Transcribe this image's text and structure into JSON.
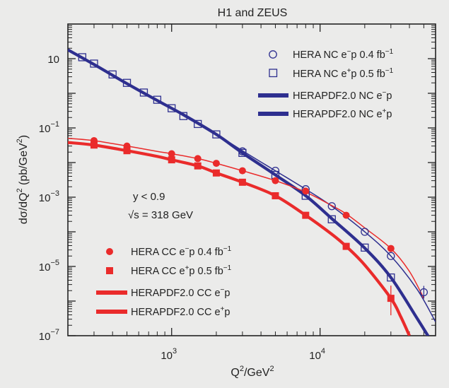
{
  "chart_data": {
    "type": "scatter",
    "title": "H1 and ZEUS",
    "xlabel": "Q²/GeV²",
    "ylabel": "dσ/dQ² (pb/GeV²)",
    "xscale": "log",
    "yscale": "log",
    "xlim": [
      200,
      60000
    ],
    "ylim": [
      1e-07,
      100
    ],
    "x_ticks": [
      {
        "value": 1000,
        "base": "10",
        "exp": "3"
      },
      {
        "value": 10000,
        "base": "10",
        "exp": "4"
      }
    ],
    "y_ticks": [
      {
        "value": 10,
        "text": "10",
        "base": "",
        "exp": ""
      },
      {
        "value": 0.1,
        "text": "",
        "base": "10",
        "exp": "−1"
      },
      {
        "value": 0.001,
        "text": "",
        "base": "10",
        "exp": "−3"
      },
      {
        "value": 1e-05,
        "text": "",
        "base": "10",
        "exp": "−5"
      },
      {
        "value": 1e-07,
        "text": "",
        "base": "10",
        "exp": "−7"
      }
    ],
    "annotations": {
      "cut": "y < 0.9",
      "sqrt_s_symbol": "√s",
      "sqrt_s_value": " = 318 GeV"
    },
    "colors": {
      "nc": "#2e2f8f",
      "cc": "#ea2b2b",
      "axes": "#222222"
    },
    "legend": {
      "placement": "top-right and lower-left",
      "nc_em_data": {
        "pre": "HERA NC e",
        "charge": "−",
        "mid": "p 0.4 fb",
        "exp": "−1"
      },
      "nc_ep_data": {
        "pre": "HERA NC e",
        "charge": "+",
        "mid": "p 0.5 fb",
        "exp": "−1"
      },
      "nc_em_fit": {
        "pre": "HERAPDF2.0 NC e",
        "charge": "−",
        "mid": "p"
      },
      "nc_ep_fit": {
        "pre": "HERAPDF2.0 NC e",
        "charge": "+",
        "mid": "p"
      },
      "cc_em_data": {
        "pre": "HERA CC e",
        "charge": "−",
        "mid": "p 0.4 fb",
        "exp": "−1"
      },
      "cc_ep_data": {
        "pre": "HERA CC e",
        "charge": "+",
        "mid": "p 0.5 fb",
        "exp": "−1"
      },
      "cc_em_fit": {
        "pre": "HERAPDF2.0 CC e",
        "charge": "−",
        "mid": "p"
      },
      "cc_ep_fit": {
        "pre": "HERAPDF2.0 CC e",
        "charge": "+",
        "mid": "p"
      }
    },
    "series": [
      {
        "name": "HERA NC e−p 0.4 fb−1",
        "marker": "open-circle",
        "color": "#2e2f8f",
        "x": [
          3000,
          5000,
          8000,
          12000,
          20000,
          30000,
          50000
        ],
        "y": [
          0.021,
          0.0058,
          0.0017,
          0.00055,
          0.0001,
          2e-05,
          1.8e-06
        ]
      },
      {
        "name": "HERA NC e+p 0.5 fb−1",
        "marker": "open-square",
        "color": "#2e2f8f",
        "x": [
          250,
          300,
          400,
          500,
          650,
          800,
          1000,
          1200,
          1500,
          2000,
          3000,
          5000,
          8000,
          12000,
          20000,
          30000
        ],
        "y": [
          11,
          7.2,
          3.5,
          2.0,
          1.05,
          0.65,
          0.37,
          0.22,
          0.13,
          0.065,
          0.019,
          0.0044,
          0.0011,
          0.00023,
          3.5e-05,
          4.8e-06
        ]
      },
      {
        "name": "HERAPDF2.0 NC e−p",
        "marker": "line",
        "color": "#2e2f8f",
        "width": "thin",
        "x": [
          200,
          300,
          500,
          800,
          1200,
          2000,
          3000,
          5000,
          8000,
          12000,
          20000,
          30000,
          45000,
          60000
        ],
        "y": [
          18,
          6.8,
          1.9,
          0.62,
          0.24,
          0.066,
          0.022,
          0.0058,
          0.0017,
          0.00055,
          0.0001,
          2e-05,
          2.2e-06,
          2.5e-07
        ]
      },
      {
        "name": "HERAPDF2.0 NC e+p",
        "marker": "line",
        "color": "#2e2f8f",
        "width": "thick",
        "x": [
          200,
          300,
          500,
          800,
          1200,
          2000,
          3000,
          5000,
          8000,
          12000,
          20000,
          30000,
          45000,
          55000
        ],
        "y": [
          18,
          6.8,
          1.9,
          0.62,
          0.24,
          0.065,
          0.019,
          0.0044,
          0.0011,
          0.00024,
          3.4e-05,
          4.8e-06,
          3.2e-07,
          8e-08
        ]
      },
      {
        "name": "HERA CC e−p 0.4 fb−1",
        "marker": "filled-circle",
        "color": "#ea2b2b",
        "x": [
          300,
          500,
          1000,
          1500,
          2000,
          3000,
          5000,
          8000,
          15000,
          30000
        ],
        "y": [
          0.043,
          0.03,
          0.018,
          0.013,
          0.0095,
          0.0058,
          0.003,
          0.0015,
          0.0003,
          3.3e-05
        ]
      },
      {
        "name": "HERA CC e+p 0.5 fb−1",
        "marker": "filled-square",
        "color": "#ea2b2b",
        "x": [
          300,
          500,
          1000,
          1500,
          2000,
          3000,
          5000,
          8000,
          15000,
          30000
        ],
        "y": [
          0.032,
          0.022,
          0.012,
          0.008,
          0.005,
          0.0027,
          0.0011,
          0.0003,
          3.8e-05,
          1.2e-06
        ]
      },
      {
        "name": "HERAPDF2.0 CC e−p",
        "marker": "line",
        "color": "#ea2b2b",
        "width": "thin",
        "x": [
          200,
          300,
          500,
          800,
          1000,
          1500,
          2000,
          3000,
          5000,
          8000,
          12000,
          15000,
          20000,
          30000,
          40000,
          50000
        ],
        "y": [
          0.05,
          0.043,
          0.03,
          0.021,
          0.018,
          0.013,
          0.0095,
          0.0058,
          0.003,
          0.0014,
          0.00057,
          0.00033,
          0.00013,
          3.3e-05,
          7.2e-06,
          1.2e-06
        ]
      },
      {
        "name": "HERAPDF2.0 CC e+p",
        "marker": "line",
        "color": "#ea2b2b",
        "width": "thick",
        "x": [
          200,
          300,
          500,
          800,
          1000,
          1500,
          2000,
          3000,
          5000,
          8000,
          12000,
          15000,
          20000,
          30000,
          35000,
          40000
        ],
        "y": [
          0.038,
          0.032,
          0.022,
          0.015,
          0.012,
          0.008,
          0.005,
          0.0027,
          0.0011,
          0.0003,
          8.5e-05,
          3.8e-05,
          1.1e-05,
          1.2e-06,
          3.5e-07,
          1e-07
        ]
      }
    ]
  }
}
